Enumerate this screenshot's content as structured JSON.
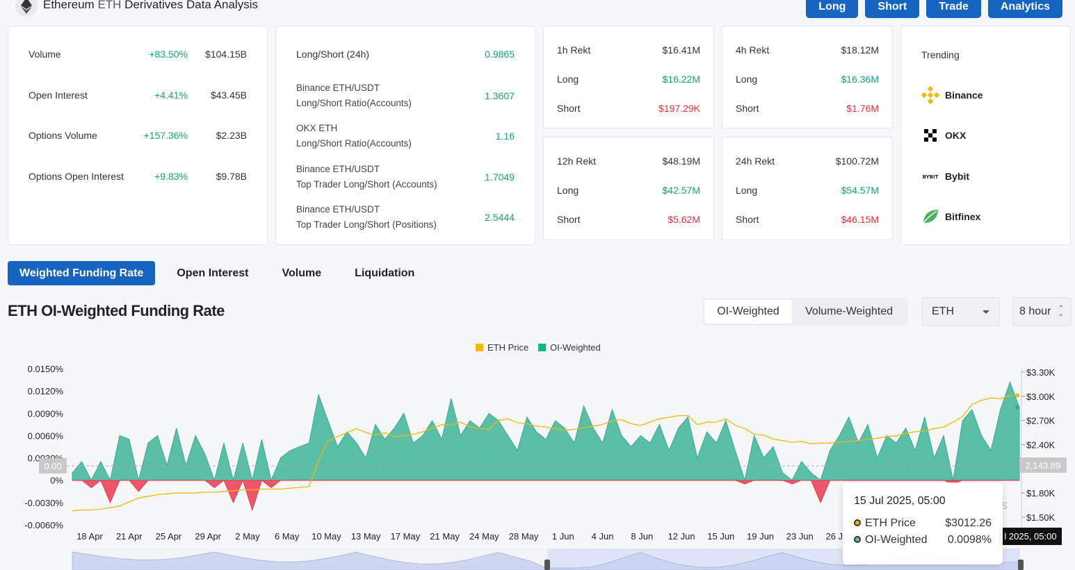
{
  "header": {
    "title": "Ethereum",
    "title_sym": "ETH",
    "title_rest": "Derivatives Data Analysis",
    "buttons": [
      "Long",
      "Short",
      "Trade",
      "Analytics"
    ]
  },
  "metrics": [
    {
      "label": "Volume",
      "change": "+83.50%",
      "value": "$104.15B"
    },
    {
      "label": "Open Interest",
      "change": "+4.41%",
      "value": "$43.45B"
    },
    {
      "label": "Options Volume",
      "change": "+157.36%",
      "value": "$2.23B"
    },
    {
      "label": "Options Open Interest",
      "change": "+9.83%",
      "value": "$9.78B"
    }
  ],
  "ratios": [
    {
      "label": "Long/Short (24h)",
      "sub": "",
      "value": "0.9865"
    },
    {
      "label": "Binance ETH/USDT",
      "sub": "Long/Short Ratio(Accounts)",
      "value": "1.3607"
    },
    {
      "label": "OKX ETH",
      "sub": "Long/Short Ratio(Accounts)",
      "value": "1.16"
    },
    {
      "label": "Binance ETH/USDT",
      "sub": "Top Trader Long/Short (Accounts)",
      "value": "1.7049"
    },
    {
      "label": "Binance ETH/USDT",
      "sub": "Top Trader Long/Short (Positions)",
      "value": "2.5444"
    }
  ],
  "rekt": [
    {
      "title": "1h Rekt",
      "total": "$16.41M",
      "long_label": "Long",
      "long": "$16.22M",
      "short_label": "Short",
      "short": "$197.29K"
    },
    {
      "title": "4h Rekt",
      "total": "$18.12M",
      "long_label": "Long",
      "long": "$16.36M",
      "short_label": "Short",
      "short": "$1.76M"
    },
    {
      "title": "12h Rekt",
      "total": "$48.19M",
      "long_label": "Long",
      "long": "$42.57M",
      "short_label": "Short",
      "short": "$5.62M"
    },
    {
      "title": "24h Rekt",
      "total": "$100.72M",
      "long_label": "Long",
      "long": "$54.57M",
      "short_label": "Short",
      "short": "$46.15M"
    }
  ],
  "trending": {
    "title": "Trending",
    "items": [
      {
        "name": "Binance",
        "icon": "binance-icon"
      },
      {
        "name": "OKX",
        "icon": "okx-icon"
      },
      {
        "name": "Bybit",
        "icon": "bybit-icon"
      },
      {
        "name": "Bitfinex",
        "icon": "bitfinex-icon"
      }
    ]
  },
  "tabs": [
    "Weighted Funding Rate",
    "Open Interest",
    "Volume",
    "Liquidation"
  ],
  "section_title": "ETH OI-Weighted Funding Rate",
  "segment": {
    "on": "OI-Weighted",
    "off": "Volume-Weighted"
  },
  "selects": {
    "coin": "ETH",
    "interval": "8 hour"
  },
  "chart_data": {
    "type": "area",
    "legend": [
      "ETH Price",
      "OI-Weighted"
    ],
    "left_ticks": [
      "0.0150%",
      "0.0120%",
      "0.0090%",
      "0.0060%",
      "0.0030%",
      "0%",
      "-0.0030%",
      "-0.0060%"
    ],
    "right_ticks": [
      "$3.30K",
      "$3.00K",
      "$2.70K",
      "$2.40K",
      "$1.80K",
      "$1.50K"
    ],
    "x_ticks": [
      "18 Apr",
      "21 Apr",
      "25 Apr",
      "29 Apr",
      "2 May",
      "6 May",
      "10 May",
      "13 May",
      "17 May",
      "21 May",
      "24 May",
      "28 May",
      "1 Jun",
      "4 Jun",
      "8 Jun",
      "12 Jun",
      "15 Jun",
      "19 Jun",
      "23 Jun",
      "26 Jun"
    ],
    "crosshair_left": "0.00",
    "crosshair_right": "2,143.89",
    "crosshair_date": "l 2025, 05:00",
    "watermark": "s",
    "colors": {
      "price": "#f0b90b",
      "positive": "#5bbfa8",
      "negative": "#f0566a"
    },
    "eth_price": [
      1580,
      1590,
      1590,
      1600,
      1620,
      1640,
      1690,
      1740,
      1760,
      1780,
      1790,
      1800,
      1800,
      1800,
      1810,
      1810,
      1820,
      1830,
      1840,
      1840,
      1850,
      1850,
      1850,
      1860,
      1870,
      1880,
      2200,
      2450,
      2500,
      2550,
      2600,
      2550,
      2520,
      2550,
      2500,
      2510,
      2530,
      2560,
      2600,
      2650,
      2640,
      2680,
      2620,
      2600,
      2590,
      2700,
      2720,
      2670,
      2660,
      2630,
      2620,
      2600,
      2580,
      2590,
      2610,
      2630,
      2650,
      2700,
      2710,
      2660,
      2640,
      2680,
      2720,
      2740,
      2760,
      2760,
      2650,
      2680,
      2680,
      2720,
      2640,
      2600,
      2530,
      2520,
      2470,
      2450,
      2430,
      2440,
      2410,
      2420,
      2420,
      2430,
      2440,
      2450,
      2470,
      2480,
      2500,
      2510,
      2540,
      2560,
      2570,
      2600,
      2620,
      2680,
      2750,
      2900,
      2950,
      2980,
      2970,
      3010,
      3012
    ],
    "funding": [
      0.001,
      0.0025,
      -0.001,
      0.0025,
      -0.003,
      0.006,
      0.0055,
      -0.0015,
      0.005,
      0.006,
      0.002,
      0.007,
      0.002,
      0.006,
      0.0035,
      -0.001,
      0.005,
      -0.003,
      0.005,
      -0.004,
      0.0055,
      -0.001,
      0.003,
      0.004,
      0.0045,
      0.005,
      0.0115,
      0.008,
      0.0045,
      0.0065,
      0.005,
      0.003,
      0.0075,
      0.0055,
      0.007,
      0.009,
      0.005,
      0.006,
      0.008,
      0.0055,
      0.011,
      0.006,
      0.008,
      0.007,
      0.009,
      0.008,
      0.006,
      0.004,
      0.0085,
      0.0065,
      0.0055,
      0.008,
      0.007,
      0.005,
      0.01,
      0.007,
      0.005,
      0.0095,
      0.006,
      0.0045,
      0.006,
      0.005,
      0.0075,
      0.004,
      0.007,
      0.0085,
      0.003,
      0.0065,
      0.005,
      0.008,
      0.004,
      -0.0005,
      0.006,
      0.003,
      0.0045,
      0.001,
      -0.0005,
      0.0025,
      0.001,
      -0.003,
      0.004,
      0.006,
      0.0085,
      0.005,
      0.0075,
      0.003,
      0.006,
      0.005,
      0.007,
      0.004,
      0.0085,
      0.003,
      0.006,
      -0.0005,
      0.008,
      0.0095,
      0.006,
      0.004,
      0.0095,
      0.0132,
      0.0098
    ]
  },
  "tooltip": {
    "date": "15 Jul 2025, 05:00",
    "price_label": "ETH Price",
    "price": "$3012.26",
    "oi_label": "OI-Weighted",
    "oi": "0.0098%"
  }
}
